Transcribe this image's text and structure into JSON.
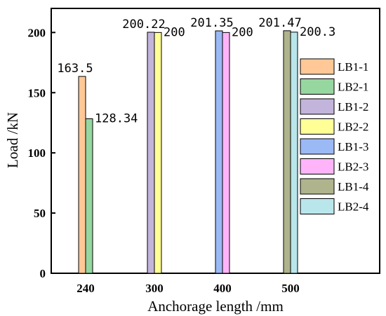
{
  "chart_data": {
    "type": "bar",
    "xlabel": "Anchorage length /mm",
    "ylabel": "Load /kN",
    "ylim": [
      0,
      220
    ],
    "yticks": [
      0,
      50,
      100,
      150,
      200
    ],
    "categories": [
      "240",
      "300",
      "400",
      "500"
    ],
    "grid": false,
    "legend_position": "right",
    "series": [
      {
        "name": "LB1-1",
        "color": "#FFC896",
        "category": "240",
        "value": 163.5,
        "label": "163.5"
      },
      {
        "name": "LB2-1",
        "color": "#96D7A0",
        "category": "240",
        "value": 128.34,
        "label": "128.34"
      },
      {
        "name": "LB1-2",
        "color": "#C3B4DC",
        "category": "300",
        "value": 200.22,
        "label": "200.22"
      },
      {
        "name": "LB2-2",
        "color": "#FFFF96",
        "category": "300",
        "value": 200,
        "label": "200"
      },
      {
        "name": "LB1-3",
        "color": "#9BB9F5",
        "category": "400",
        "value": 201.35,
        "label": "201.35"
      },
      {
        "name": "LB2-3",
        "color": "#FFB4FA",
        "category": "400",
        "value": 200,
        "label": "200"
      },
      {
        "name": "LB1-4",
        "color": "#AFB48C",
        "category": "500",
        "value": 201.47,
        "label": "201.47"
      },
      {
        "name": "LB2-4",
        "color": "#B9E6EB",
        "category": "500",
        "value": 200.3,
        "label": "200.3"
      }
    ]
  }
}
